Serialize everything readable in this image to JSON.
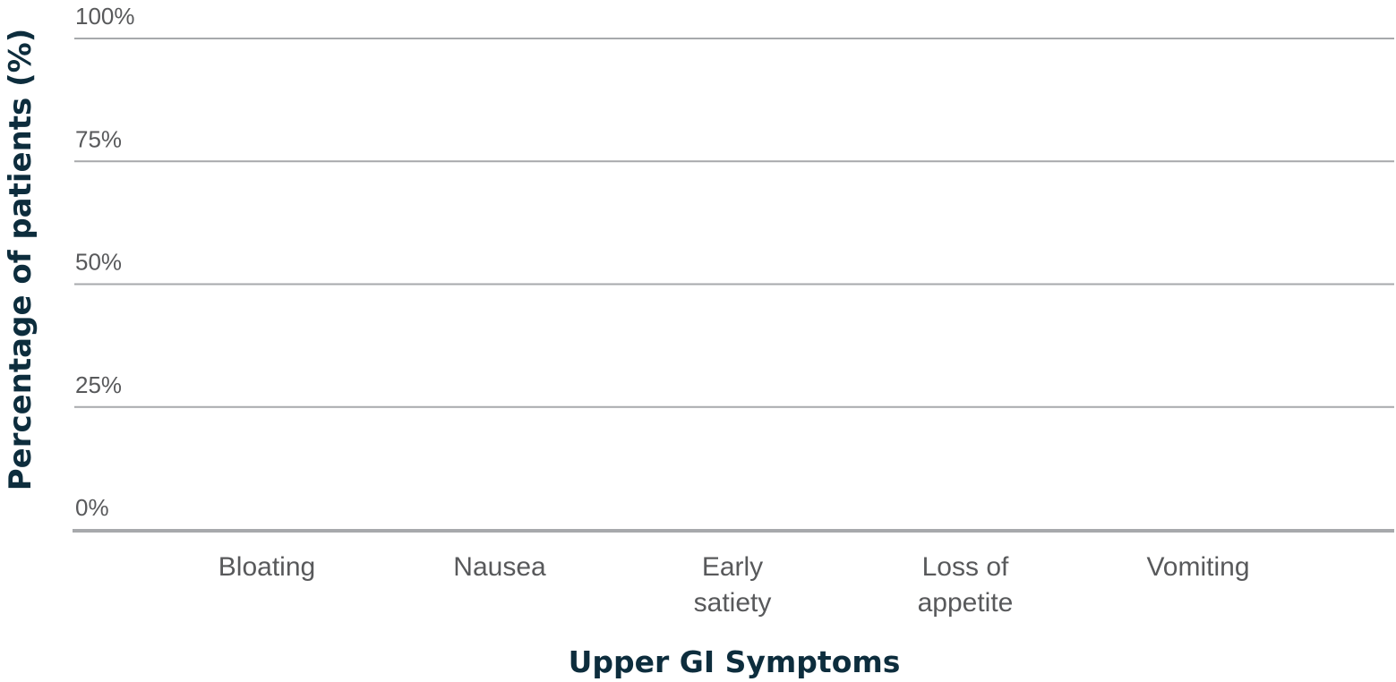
{
  "chart_data": {
    "type": "bar",
    "title": "",
    "xlabel": "Upper GI Symptoms",
    "ylabel": "Percentage of patients (%)",
    "categories": [
      [
        "Bloating"
      ],
      [
        "Nausea"
      ],
      [
        "Early",
        "satiety"
      ],
      [
        "Loss of",
        "appetite"
      ],
      [
        "Vomiting"
      ]
    ],
    "ylim": [
      0,
      100
    ],
    "yticks": [
      "0%",
      "25%",
      "50%",
      "75%",
      "100%"
    ],
    "ytick_values": [
      0,
      25,
      50,
      75,
      100
    ],
    "grid": true,
    "series": [],
    "colors": {
      "grid": "#a7a9ac",
      "baseline": "#a7a9ac",
      "tick_text": "#58595b",
      "title_text": "#0d2d3d"
    }
  }
}
